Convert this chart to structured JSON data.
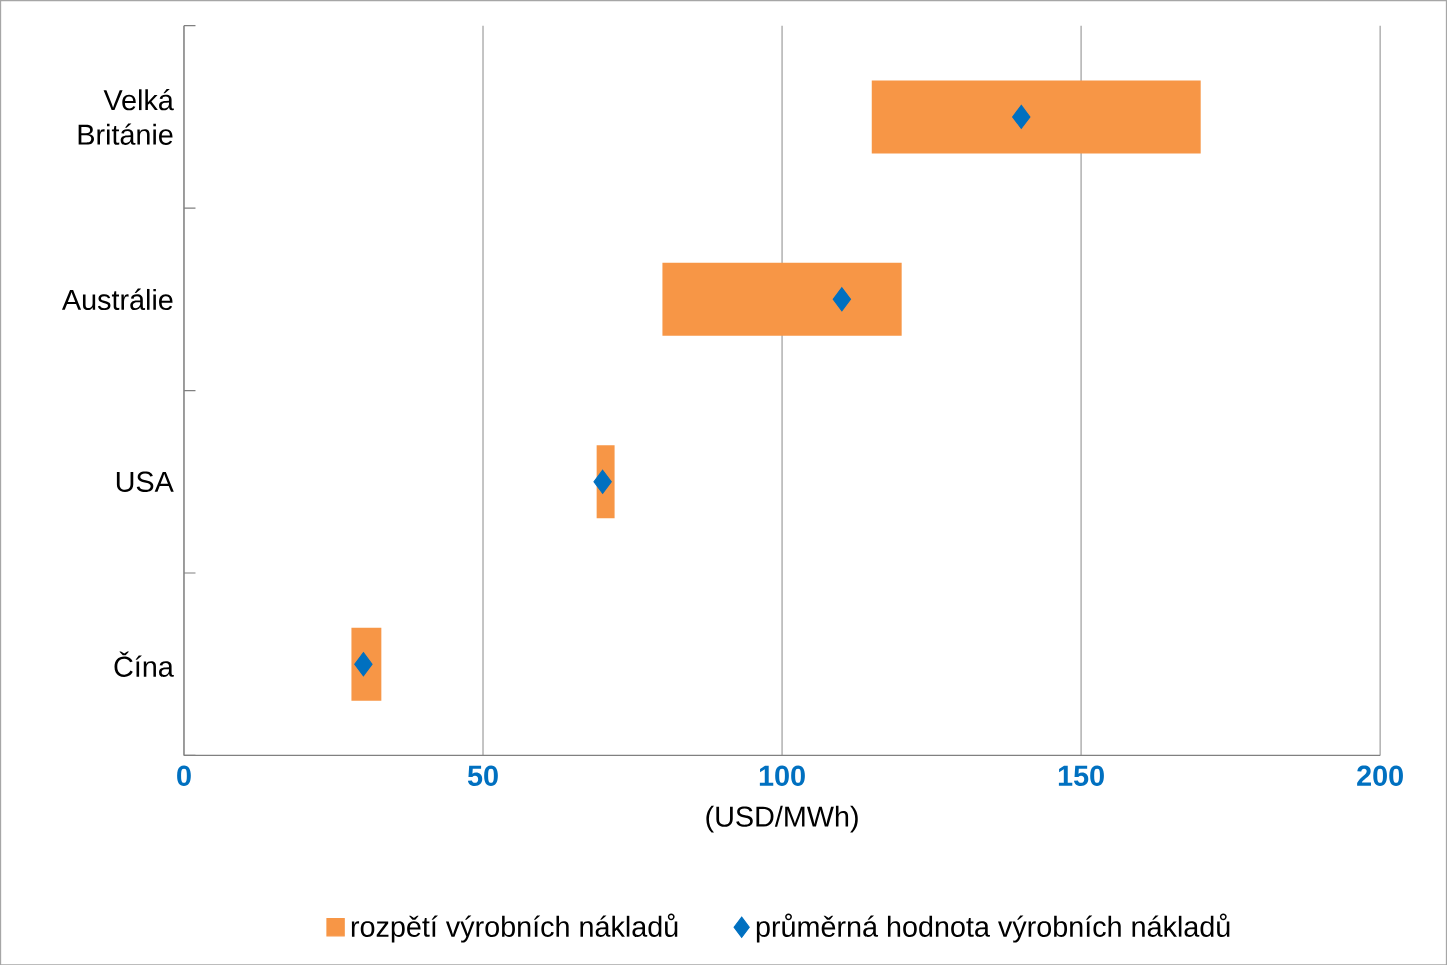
{
  "chart_data": {
    "type": "bar",
    "orientation": "horizontal",
    "categories": [
      "Velká Británie",
      "Austrálie",
      "USA",
      "Čína"
    ],
    "series": [
      {
        "name": "rozpětí výrobních nákladů",
        "color": "#f79646",
        "base": [
          115,
          80,
          69,
          28
        ],
        "values": [
          55,
          40,
          3,
          5
        ]
      },
      {
        "name": "průměrná hodnota výrobních nákladů",
        "type": "scatter",
        "marker": "diamond",
        "color": "#0070c0",
        "values": [
          140,
          110,
          70,
          30
        ]
      }
    ],
    "xlabel": "(USD/MWh)",
    "xlim": [
      0,
      200
    ],
    "xticks": [
      0,
      50,
      100,
      150,
      200
    ],
    "grid": "x",
    "legend": "bottom"
  }
}
